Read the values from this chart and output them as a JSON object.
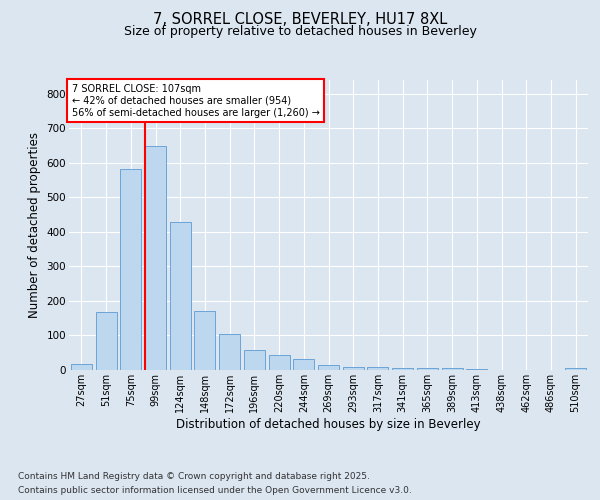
{
  "title_line1": "7, SORREL CLOSE, BEVERLEY, HU17 8XL",
  "title_line2": "Size of property relative to detached houses in Beverley",
  "xlabel": "Distribution of detached houses by size in Beverley",
  "ylabel": "Number of detached properties",
  "categories": [
    "27sqm",
    "51sqm",
    "75sqm",
    "99sqm",
    "124sqm",
    "148sqm",
    "172sqm",
    "196sqm",
    "220sqm",
    "244sqm",
    "269sqm",
    "293sqm",
    "317sqm",
    "341sqm",
    "365sqm",
    "389sqm",
    "413sqm",
    "438sqm",
    "462sqm",
    "486sqm",
    "510sqm"
  ],
  "values": [
    18,
    168,
    583,
    648,
    430,
    172,
    105,
    57,
    43,
    32,
    15,
    10,
    9,
    5,
    5,
    5,
    3,
    1,
    1,
    0,
    5
  ],
  "bar_color": "#bdd7ee",
  "bar_edge_color": "#5b9bd5",
  "vline_x_index": 3,
  "vline_color": "red",
  "annotation_title": "7 SORREL CLOSE: 107sqm",
  "annotation_line1": "← 42% of detached houses are smaller (954)",
  "annotation_line2": "56% of semi-detached houses are larger (1,260) →",
  "annotation_box_color": "white",
  "annotation_box_edge": "red",
  "ylim": [
    0,
    840
  ],
  "yticks": [
    0,
    100,
    200,
    300,
    400,
    500,
    600,
    700,
    800
  ],
  "footnote_line1": "Contains HM Land Registry data © Crown copyright and database right 2025.",
  "footnote_line2": "Contains public sector information licensed under the Open Government Licence v3.0.",
  "bg_color": "#dce6f1",
  "plot_bg_color": "#dce6f1",
  "grid_color": "white",
  "title_fontsize": 10.5,
  "subtitle_fontsize": 9,
  "axis_label_fontsize": 8.5,
  "tick_fontsize": 7,
  "annotation_fontsize": 7,
  "footnote_fontsize": 6.5
}
